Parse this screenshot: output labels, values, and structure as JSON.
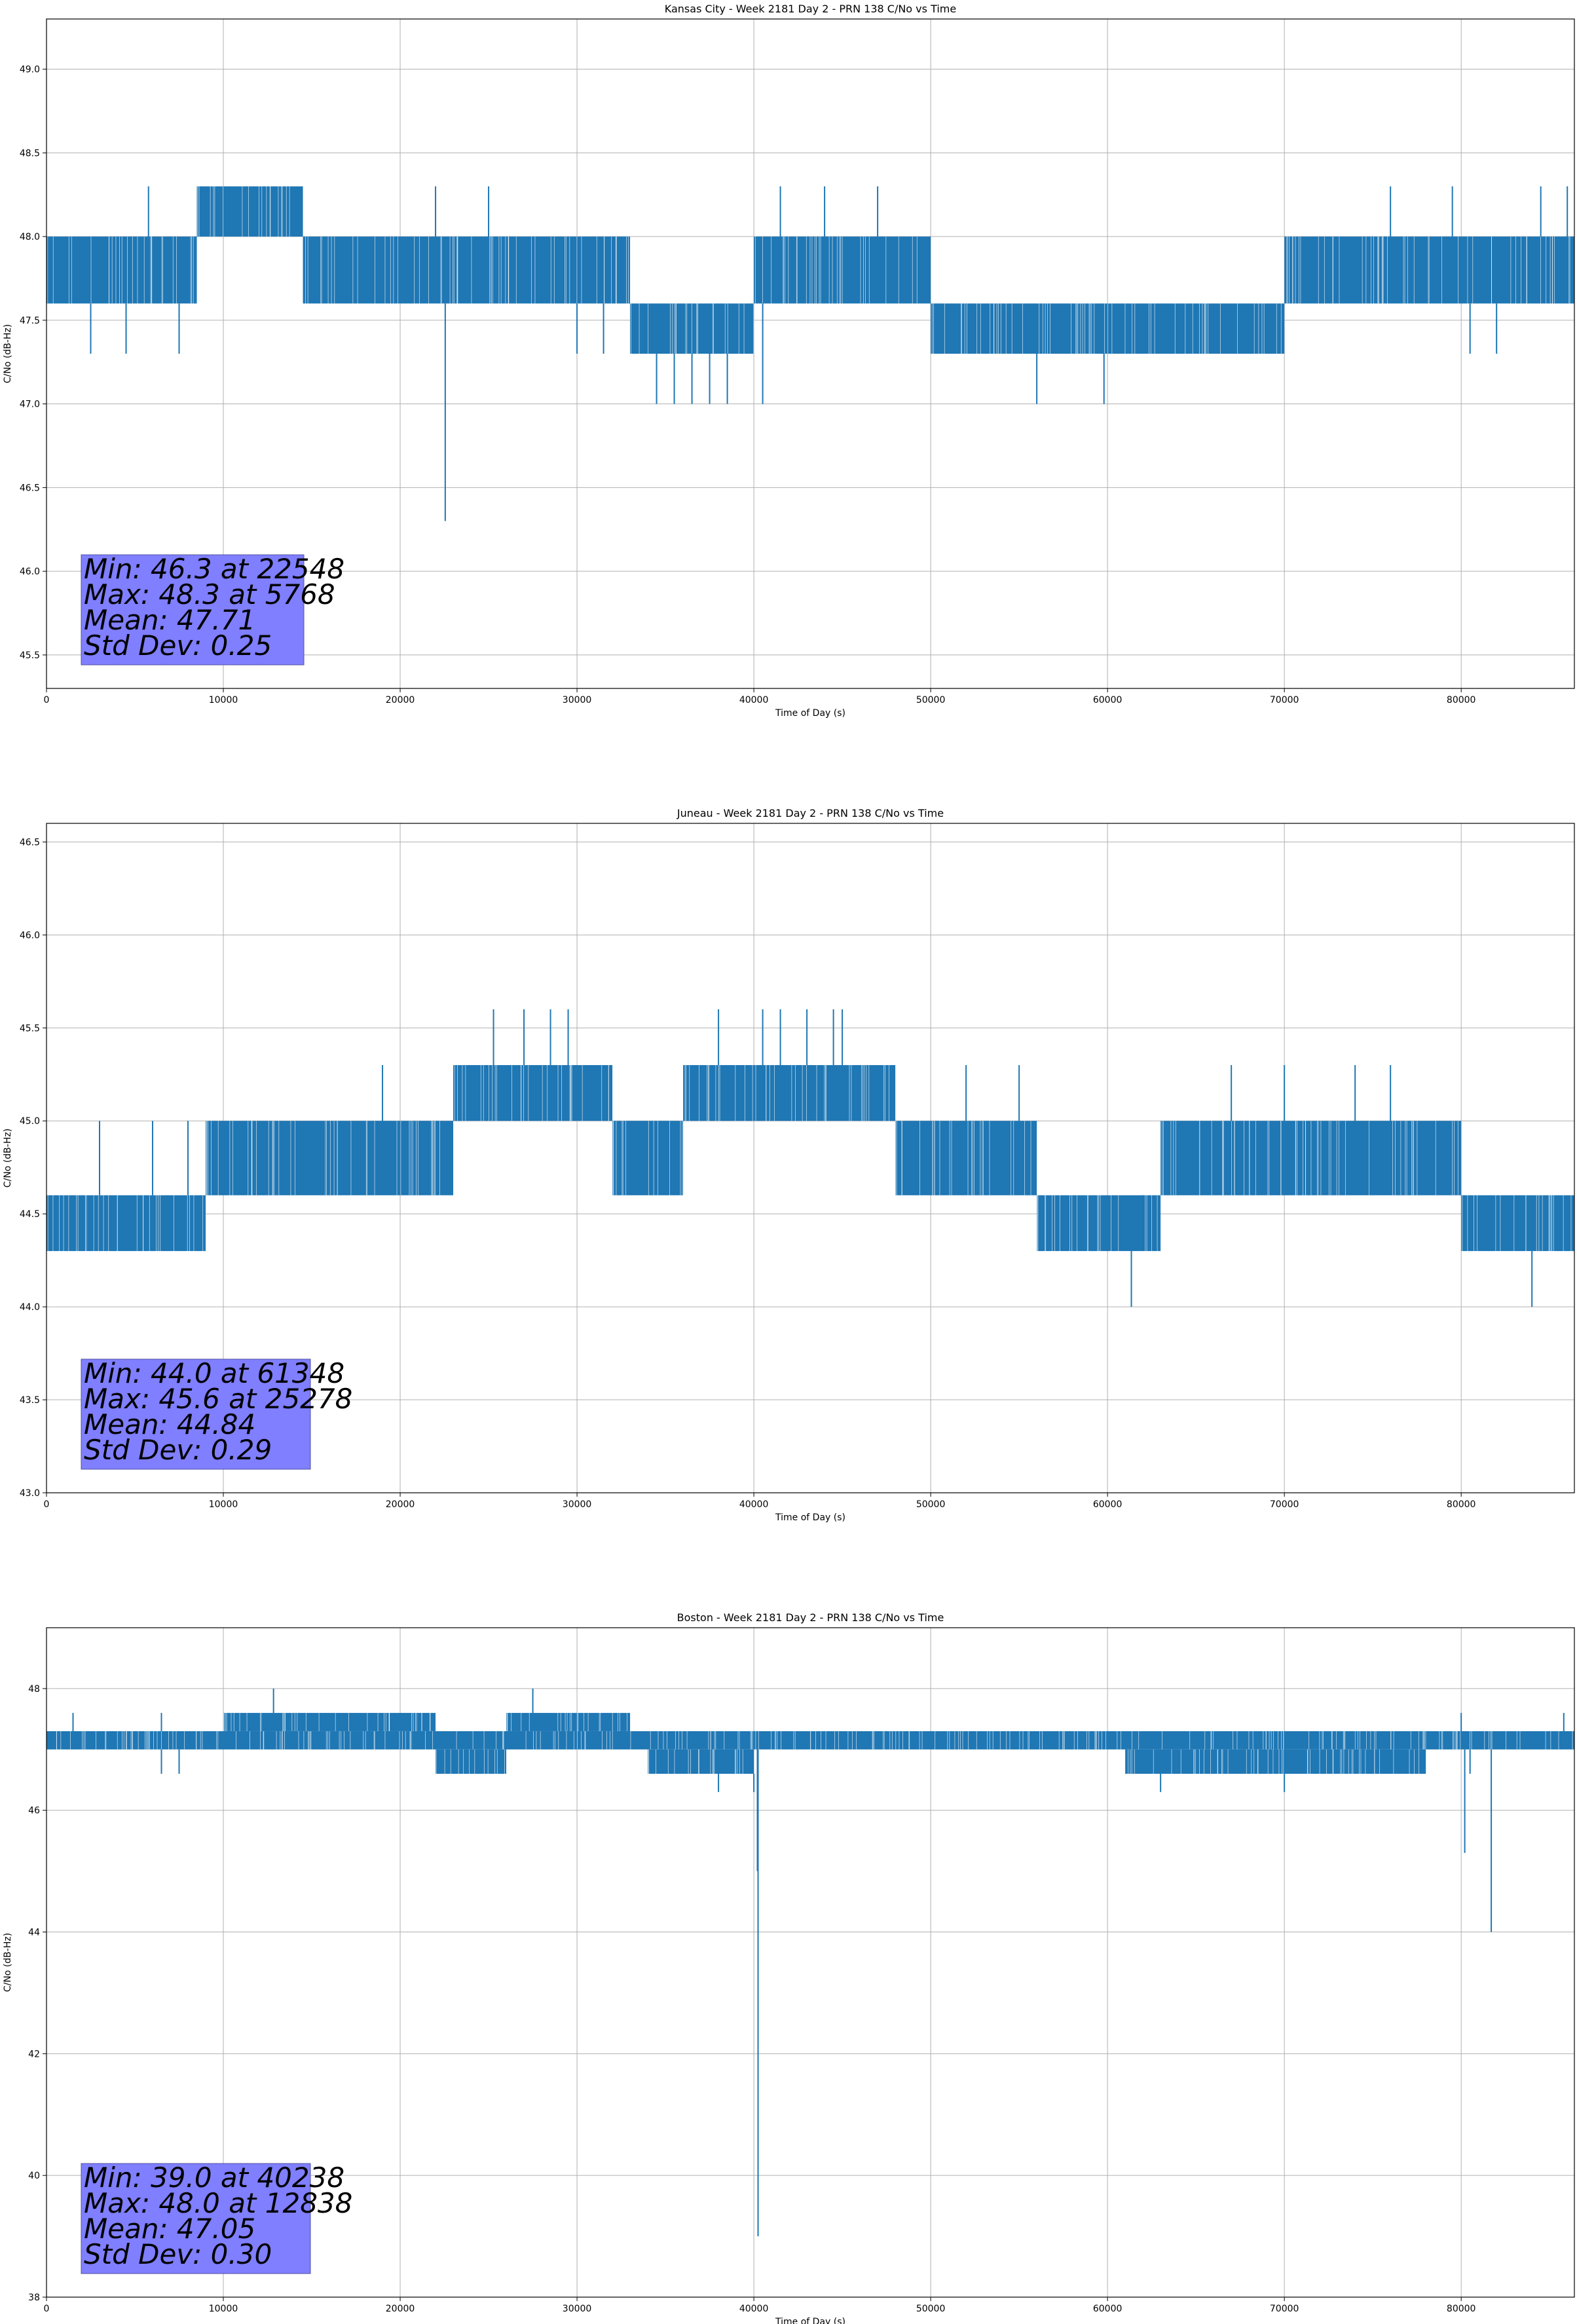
{
  "charts": [
    {
      "type": "line",
      "title": "Kansas City - Week 2181 Day 2 - PRN 138 C/No vs Time",
      "xlabel": "Time of Day (s)",
      "ylabel": "C/No (dB-Hz)",
      "xlim": [
        0,
        86400
      ],
      "ylim": [
        45.3,
        49.3
      ],
      "xticks": [
        0,
        10000,
        20000,
        30000,
        40000,
        50000,
        60000,
        70000,
        80000
      ],
      "yticks": [
        45.5,
        46.0,
        46.5,
        47.0,
        47.5,
        48.0,
        48.5,
        49.0
      ],
      "ytick_decimals": 1,
      "grid": true,
      "color": "#1f77b4",
      "stats": [
        "Min: 46.3 at 22548",
        "Max: 48.3 at 5768",
        "Mean: 47.71",
        "Std Dev: 0.25"
      ],
      "bands": [
        {
          "x": [
            0,
            8500
          ],
          "y": [
            47.6,
            48.0
          ]
        },
        {
          "x": [
            8500,
            14500
          ],
          "y": [
            48.0,
            48.3
          ]
        },
        {
          "x": [
            14500,
            33000
          ],
          "y": [
            47.6,
            48.0
          ]
        },
        {
          "x": [
            33000,
            40000
          ],
          "y": [
            47.3,
            47.6
          ]
        },
        {
          "x": [
            40000,
            50000
          ],
          "y": [
            47.6,
            48.0
          ]
        },
        {
          "x": [
            50000,
            70000
          ],
          "y": [
            47.3,
            47.6
          ]
        },
        {
          "x": [
            70000,
            86400
          ],
          "y": [
            47.6,
            48.0
          ]
        }
      ],
      "spikes": [
        [
          22548,
          46.3
        ],
        [
          34500,
          47.0
        ],
        [
          35500,
          47.0
        ],
        [
          36500,
          47.0
        ],
        [
          37500,
          47.0
        ],
        [
          38500,
          47.0
        ],
        [
          40500,
          47.0
        ],
        [
          56000,
          47.0
        ],
        [
          59800,
          47.0
        ],
        [
          5768,
          48.3
        ],
        [
          10500,
          48.3
        ],
        [
          13000,
          48.3
        ],
        [
          22000,
          48.3
        ],
        [
          25000,
          48.3
        ],
        [
          41500,
          48.3
        ],
        [
          44000,
          48.3
        ],
        [
          47000,
          48.3
        ],
        [
          76000,
          48.3
        ],
        [
          79500,
          48.3
        ],
        [
          84500,
          48.3
        ],
        [
          86000,
          48.3
        ],
        [
          2500,
          47.3
        ],
        [
          4500,
          47.3
        ],
        [
          7500,
          47.3
        ],
        [
          30000,
          47.3
        ],
        [
          31500,
          47.3
        ],
        [
          80500,
          47.3
        ],
        [
          82000,
          47.3
        ]
      ]
    },
    {
      "type": "line",
      "title": "Juneau - Week 2181 Day 2 - PRN 138 C/No vs Time",
      "xlabel": "Time of Day (s)",
      "ylabel": "C/No (dB-Hz)",
      "xlim": [
        0,
        86400
      ],
      "ylim": [
        43.0,
        46.6
      ],
      "xticks": [
        0,
        10000,
        20000,
        30000,
        40000,
        50000,
        60000,
        70000,
        80000
      ],
      "yticks": [
        43.0,
        43.5,
        44.0,
        44.5,
        45.0,
        45.5,
        46.0,
        46.5
      ],
      "ytick_decimals": 1,
      "grid": true,
      "color": "#1f77b4",
      "stats": [
        "Min: 44.0 at 61348",
        "Max: 45.6 at 25278",
        "Mean: 44.84",
        "Std Dev: 0.29"
      ],
      "bands": [
        {
          "x": [
            0,
            9000
          ],
          "y": [
            44.3,
            44.6
          ]
        },
        {
          "x": [
            9000,
            16000
          ],
          "y": [
            44.6,
            45.0
          ]
        },
        {
          "x": [
            16000,
            23000
          ],
          "y": [
            44.6,
            45.0
          ]
        },
        {
          "x": [
            23000,
            32000
          ],
          "y": [
            45.0,
            45.3
          ]
        },
        {
          "x": [
            32000,
            36000
          ],
          "y": [
            44.6,
            45.0
          ]
        },
        {
          "x": [
            36000,
            48000
          ],
          "y": [
            45.0,
            45.3
          ]
        },
        {
          "x": [
            48000,
            56000
          ],
          "y": [
            44.6,
            45.0
          ]
        },
        {
          "x": [
            56000,
            63000
          ],
          "y": [
            44.3,
            44.6
          ]
        },
        {
          "x": [
            63000,
            80000
          ],
          "y": [
            44.6,
            45.0
          ]
        },
        {
          "x": [
            80000,
            86400
          ],
          "y": [
            44.3,
            44.6
          ]
        }
      ],
      "spikes": [
        [
          61348,
          44.0
        ],
        [
          84000,
          44.0
        ],
        [
          25278,
          45.6
        ],
        [
          27000,
          45.6
        ],
        [
          28500,
          45.6
        ],
        [
          29500,
          45.6
        ],
        [
          38000,
          45.6
        ],
        [
          40500,
          45.6
        ],
        [
          41500,
          45.6
        ],
        [
          43000,
          45.6
        ],
        [
          44500,
          45.6
        ],
        [
          45000,
          45.6
        ],
        [
          19000,
          45.3
        ],
        [
          52000,
          45.3
        ],
        [
          55000,
          45.3
        ],
        [
          67000,
          45.3
        ],
        [
          70000,
          45.3
        ],
        [
          74000,
          45.3
        ],
        [
          76000,
          45.3
        ],
        [
          3000,
          45.0
        ],
        [
          6000,
          45.0
        ],
        [
          8000,
          45.0
        ],
        [
          1000,
          44.6
        ],
        [
          62000,
          44.3
        ]
      ]
    },
    {
      "type": "line",
      "title": "Boston - Week 2181 Day 2 - PRN 138 C/No vs Time",
      "xlabel": "Time of Day (s)",
      "ylabel": "C/No (dB-Hz)",
      "xlim": [
        0,
        86400
      ],
      "ylim": [
        38.0,
        49.0
      ],
      "xticks": [
        0,
        10000,
        20000,
        30000,
        40000,
        50000,
        60000,
        70000,
        80000
      ],
      "yticks": [
        38,
        40,
        42,
        44,
        46,
        48
      ],
      "ytick_decimals": 0,
      "grid": true,
      "color": "#1f77b4",
      "stats": [
        "Min: 39.0 at 40238",
        "Max: 48.0 at 12838",
        "Mean: 47.05",
        "Std Dev: 0.30"
      ],
      "bands": [
        {
          "x": [
            0,
            86400
          ],
          "y": [
            47.0,
            47.3
          ]
        },
        {
          "x": [
            10000,
            22000
          ],
          "y": [
            47.3,
            47.6
          ]
        },
        {
          "x": [
            22000,
            26000
          ],
          "y": [
            46.6,
            47.0
          ]
        },
        {
          "x": [
            26000,
            33000
          ],
          "y": [
            47.3,
            47.6
          ]
        },
        {
          "x": [
            34000,
            40000
          ],
          "y": [
            46.6,
            47.0
          ]
        },
        {
          "x": [
            61000,
            78000
          ],
          "y": [
            46.6,
            47.0
          ]
        }
      ],
      "spikes": [
        [
          40238,
          39.0
        ],
        [
          40200,
          45.0
        ],
        [
          80200,
          45.3
        ],
        [
          81700,
          44.0
        ],
        [
          12838,
          48.0
        ],
        [
          27500,
          48.0
        ],
        [
          6500,
          47.6
        ],
        [
          1500,
          47.6
        ],
        [
          80000,
          47.6
        ],
        [
          85800,
          47.6
        ],
        [
          40000,
          46.3
        ],
        [
          63000,
          46.3
        ],
        [
          70000,
          46.3
        ],
        [
          80500,
          46.6
        ],
        [
          6500,
          46.6
        ],
        [
          7500,
          46.6
        ],
        [
          38000,
          46.3
        ]
      ]
    }
  ]
}
